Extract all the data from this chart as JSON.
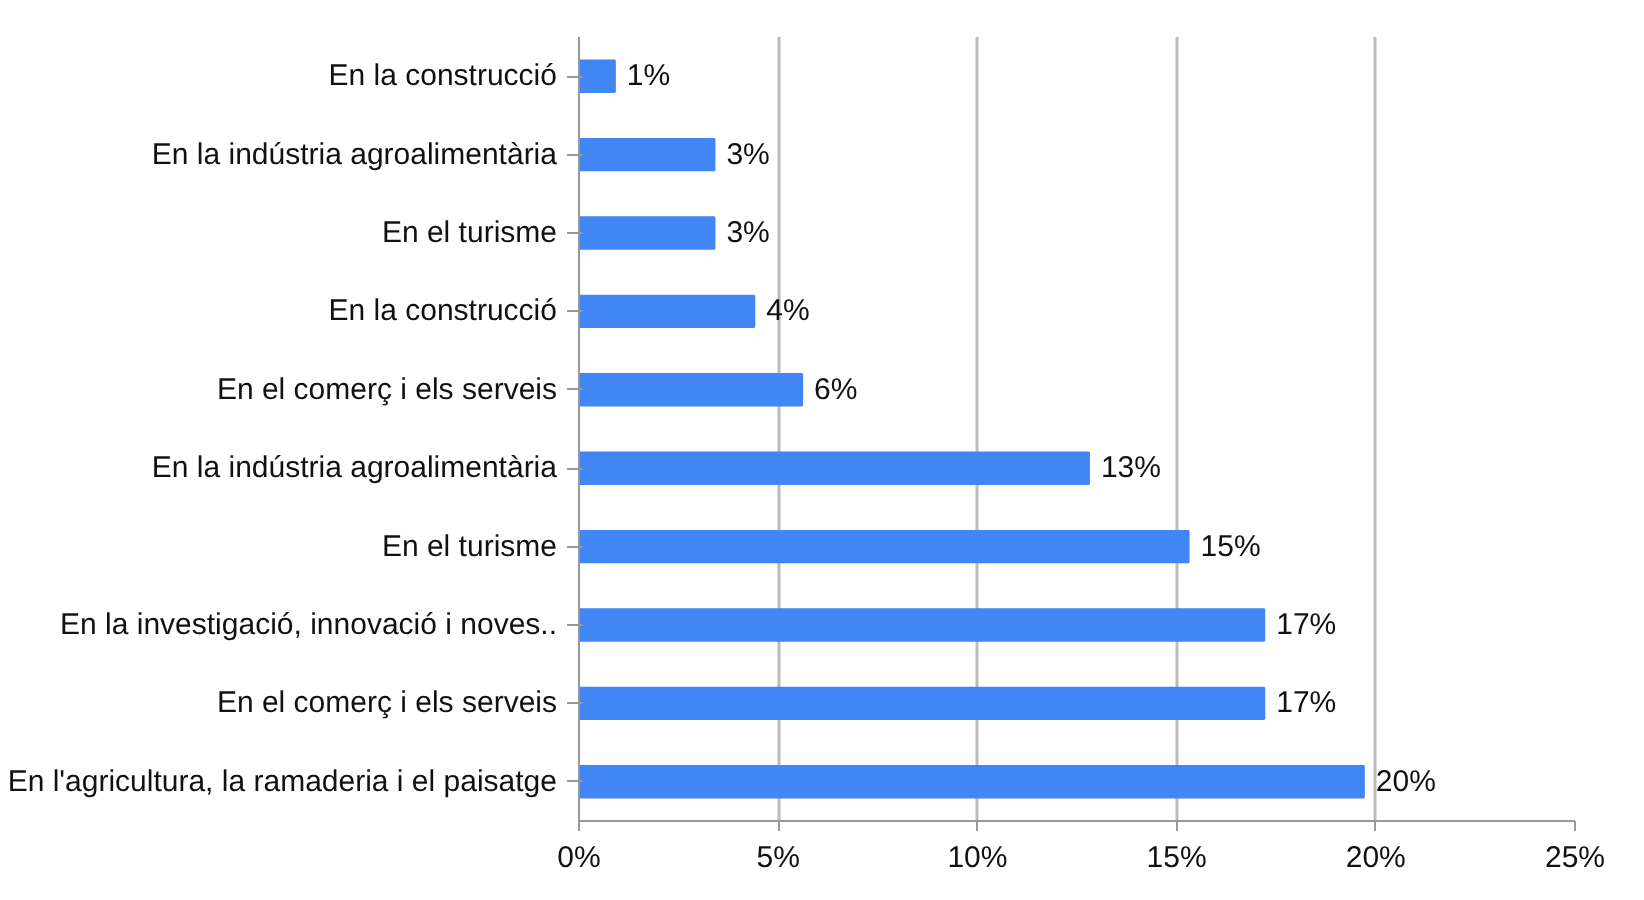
{
  "chart_data": {
    "type": "bar",
    "orientation": "horizontal",
    "categories": [
      "En la construcció",
      "En la indústria agroalimentària",
      "En el turisme",
      "En la construcció",
      "En el comerç i els serveis",
      "En la indústria agroalimentària",
      "En el turisme",
      "En la investigació, innovació i noves..",
      "En el comerç i els serveis",
      "En l'agricultura, la ramaderia i el paisatge"
    ],
    "values": [
      0.9,
      3.4,
      3.4,
      4.4,
      5.6,
      12.8,
      15.3,
      17.2,
      17.2,
      19.7
    ],
    "value_labels": [
      "1%",
      "3%",
      "3%",
      "4%",
      "6%",
      "13%",
      "15%",
      "17%",
      "17%",
      "20%"
    ],
    "color": "#4285f4",
    "xlim": [
      0,
      25
    ],
    "xticks": [
      {
        "value": 0,
        "label": "0%"
      },
      {
        "value": 5,
        "label": "5%"
      },
      {
        "value": 10,
        "label": "10%"
      },
      {
        "value": 15,
        "label": "15%"
      },
      {
        "value": 20,
        "label": "20%"
      },
      {
        "value": 25,
        "label": "25%"
      }
    ],
    "grid": "x"
  }
}
